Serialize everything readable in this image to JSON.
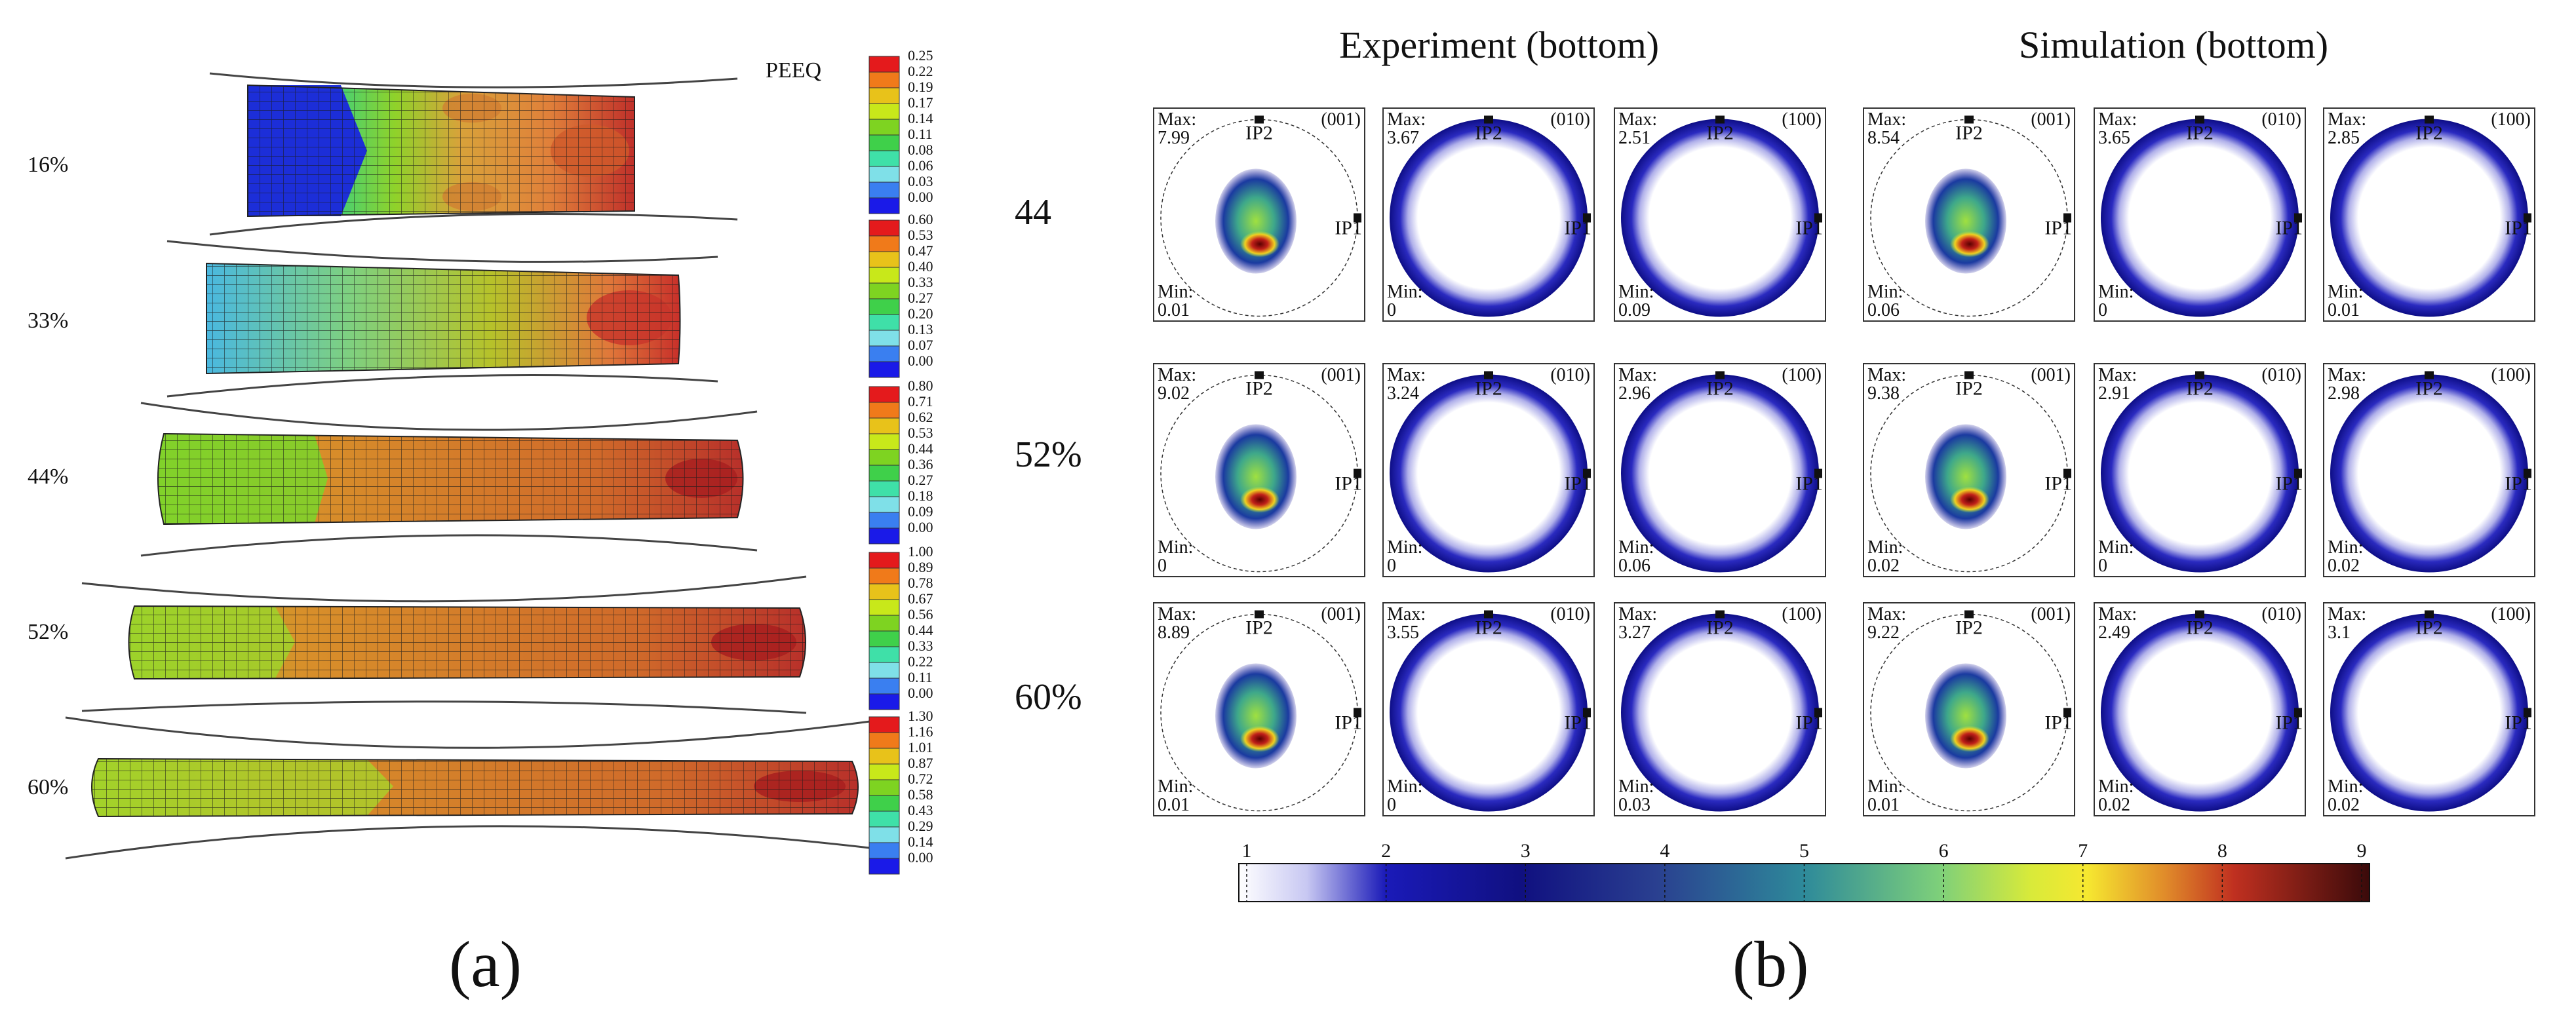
{
  "panel_a": {
    "caption": "(a)",
    "legend_title": "PEEQ",
    "strains": [
      "16%",
      "33%",
      "44%",
      "52%",
      "60%"
    ],
    "legends": [
      [
        "0.25",
        "0.22",
        "0.19",
        "0.17",
        "0.14",
        "0.11",
        "0.08",
        "0.06",
        "0.03",
        "0.00"
      ],
      [
        "0.60",
        "0.53",
        "0.47",
        "0.40",
        "0.33",
        "0.27",
        "0.20",
        "0.13",
        "0.07",
        "0.00"
      ],
      [
        "0.80",
        "0.71",
        "0.62",
        "0.53",
        "0.44",
        "0.36",
        "0.27",
        "0.18",
        "0.09",
        "0.00"
      ],
      [
        "1.00",
        "0.89",
        "0.78",
        "0.67",
        "0.56",
        "0.44",
        "0.33",
        "0.22",
        "0.11",
        "0.00"
      ],
      [
        "1.30",
        "1.16",
        "1.01",
        "0.87",
        "0.72",
        "0.58",
        "0.43",
        "0.29",
        "0.14",
        "0.00"
      ]
    ],
    "legend_colors": [
      "#e41a1c",
      "#f07a1a",
      "#e8c21a",
      "#c8e81a",
      "#7ed321",
      "#3fd04a",
      "#3fe0a8",
      "#7fe0e8",
      "#3a7ff0",
      "#1a1ae8"
    ]
  },
  "row_labels": [
    "44",
    "52%",
    "60%"
  ],
  "panel_b": {
    "caption": "(b)",
    "experiment_title": "Experiment (bottom)",
    "simulation_title": "Simulation (bottom)",
    "labels": {
      "ip1": "IP1",
      "ip2": "IP2",
      "max": "Max:",
      "min": "Min:"
    },
    "rows": [
      [
        {
          "plane": "(001)",
          "max": "7.99",
          "min": "0.01"
        },
        {
          "plane": "(010)",
          "max": "3.67",
          "min": "0"
        },
        {
          "plane": "(100)",
          "max": "2.51",
          "min": "0.09"
        },
        {
          "plane": "(001)",
          "max": "8.54",
          "min": "0.06"
        },
        {
          "plane": "(010)",
          "max": "3.65",
          "min": "0"
        },
        {
          "plane": "(100)",
          "max": "2.85",
          "min": "0.01"
        }
      ],
      [
        {
          "plane": "(001)",
          "max": "9.02",
          "min": "0"
        },
        {
          "plane": "(010)",
          "max": "3.24",
          "min": "0"
        },
        {
          "plane": "(100)",
          "max": "2.96",
          "min": "0.06"
        },
        {
          "plane": "(001)",
          "max": "9.38",
          "min": "0.02"
        },
        {
          "plane": "(010)",
          "max": "2.91",
          "min": "0"
        },
        {
          "plane": "(100)",
          "max": "2.98",
          "min": "0.02"
        }
      ],
      [
        {
          "plane": "(001)",
          "max": "8.89",
          "min": "0.01"
        },
        {
          "plane": "(010)",
          "max": "3.55",
          "min": "0"
        },
        {
          "plane": "(100)",
          "max": "3.27",
          "min": "0.03"
        },
        {
          "plane": "(001)",
          "max": "9.22",
          "min": "0.01"
        },
        {
          "plane": "(010)",
          "max": "2.49",
          "min": "0.02"
        },
        {
          "plane": "(100)",
          "max": "3.1",
          "min": "0.02"
        }
      ]
    ],
    "colorbar_ticks": [
      "1",
      "2",
      "3",
      "4",
      "5",
      "6",
      "7",
      "8",
      "9"
    ]
  }
}
